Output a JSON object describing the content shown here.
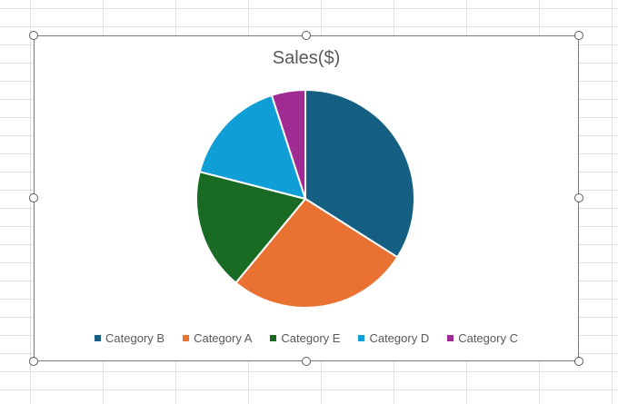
{
  "chart_data": {
    "type": "pie",
    "title": "Sales($)",
    "legend_position": "bottom",
    "slices": [
      {
        "name": "Category B",
        "value": 34,
        "color": "#156082"
      },
      {
        "name": "Category A",
        "value": 27,
        "color": "#E97132"
      },
      {
        "name": "Category E",
        "value": 18,
        "color": "#196B24"
      },
      {
        "name": "Category D",
        "value": 16,
        "color": "#0F9ED5"
      },
      {
        "name": "Category C",
        "value": 5,
        "color": "#A02B93"
      }
    ]
  }
}
